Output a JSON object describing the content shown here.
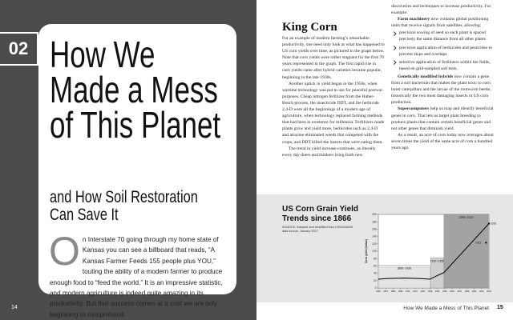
{
  "left_page": {
    "chapter_number": "02",
    "title_lines": [
      "How We",
      "Made a Mess",
      "of This Planet"
    ],
    "subtitle_lines": [
      "and How Soil Restoration",
      "Can Save It"
    ],
    "intro": {
      "drop_cap": "O",
      "text": "n Interstate 70 going through my home state of Kansas you can see a billboard that reads, “A Kansas Farmer Feeds 155 people plus YOU,” touting the ability of a modern farmer to produce enough food to “feed the world.” It is an impressive statistic, and modern agriculture is indeed quite amazing in its productivity. But that success comes at a cost we are only beginning to comprehend."
    },
    "page_number": "14"
  },
  "right_page": {
    "heading": "King Corn",
    "column_1": [
      "For an example of modern farming’s remarkable productivity, one need only look at what has happened to US corn yields over time, as pictured in the graph below. Note that corn yields were rather stagnant for the first 70 years represented in the graph. The first rapid rise in corn yields came after hybrid varieties became popular, beginning in the late 1930s.",
      "Another uptick in yield began in the 1950s, when wartime technology was put to use for peaceful postwar purposes. Cheap nitrogen fertilizer from the Haber-Bosch process, the insecticide DDT, and the herbicide 2,4-D were all the beginnings of a modern age of agriculture, when technology replaced farming methods that had been in existence for millennia. Fertilizers made plants grow and yield more, herbicides such as 2,4-D and atrazine eliminated weeds that competed with the crops, and DDT killed the insects that were eating them.",
      "The trend in yield increase continues, as literally every day doers and thinkers bring forth new"
    ],
    "column_2": [
      {
        "text": "discoveries and techniques to increase productivity. For example:"
      },
      {
        "lead": "Farm machinery",
        "text": " now contains global positioning units that receive signals from satellites, allowing:"
      },
      {
        "bullets": [
          "precision sowing of seed so each plant is spaced precisely the same distance from all other plants",
          "precision application of herbicides and pesticides to prevent skips and overlaps",
          "selective application of fertilizers within the fields, based on grid-sampled soil tests."
        ]
      },
      {
        "lead": "Genetically modified hybrids",
        "text": " now contain a gene from a soil bacterium that makes the plant toxic to corn borer caterpillars and the larvae of the rootworm beetle, historically the two most damaging insects in US corn production."
      },
      {
        "lead": "Supercomputers",
        "text": " help us map and identify beneficial genes in corn. That lets us target plant breeding to produce plants that contain certain beneficial genes and not other genes that diminish yield."
      },
      {
        "text": "As a result, an acre of corn today now averages about seven times the yield of the same acre of corn a hundred years ago."
      }
    ],
    "footer": {
      "running_title": "How We Made a Mess of This Planet",
      "page_number": "15"
    }
  },
  "chart_data": {
    "type": "line",
    "title": "US Corn Grain Yield Trends since 1866",
    "source": "SOURCE: Adapted and simplified from USDA/NASS data source, January 2017",
    "ylabel": "Corn yield (bu/ac)",
    "x": [
      1866,
      1880,
      1900,
      1920,
      1936,
      1945,
      1955,
      2016
    ],
    "values": [
      24,
      26,
      27,
      26,
      24,
      33,
      42,
      175
    ],
    "color": "#111111",
    "xlim": [
      1866,
      2016
    ],
    "xticks": [
      1866,
      1876,
      1886,
      1896,
      1906,
      1916,
      1926,
      1936,
      1946,
      1956,
      1966,
      1976,
      1986,
      1996,
      2006,
      2016
    ],
    "ylim": [
      0,
      200
    ],
    "yticks": [
      0,
      20,
      40,
      60,
      80,
      100,
      120,
      140,
      160,
      180,
      200
    ],
    "periods": [
      {
        "label": "1866–1936",
        "start": 1866,
        "end": 1936,
        "top": 62,
        "color": "#e4e4e4"
      },
      {
        "label": "1937–1955",
        "start": 1937,
        "end": 1955,
        "top": 82,
        "color": "#cfcfcf"
      },
      {
        "label": "1955–2015",
        "start": 1955,
        "end": 2015,
        "top": 200,
        "color": "#a3a3a3"
      }
    ],
    "annotations": [
      {
        "text": "2016",
        "x": 2016,
        "y": 175
      },
      {
        "text": "2012",
        "x": 2012,
        "y": 123
      }
    ]
  }
}
